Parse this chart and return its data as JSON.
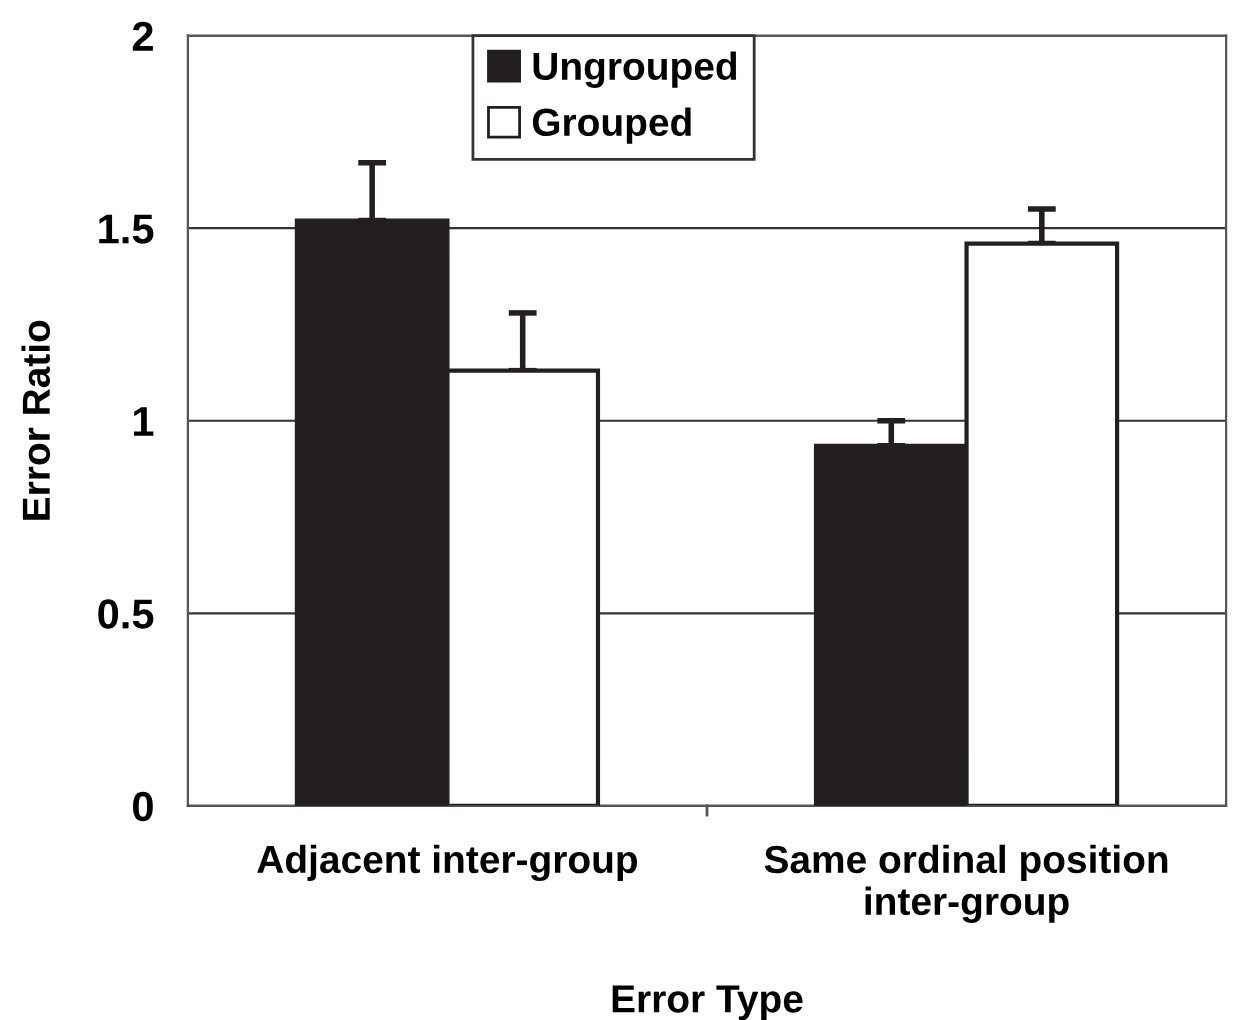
{
  "chart_data": {
    "type": "bar",
    "xlabel": "Error Type",
    "ylabel": "Error Ratio",
    "categories": [
      "Adjacent inter-group",
      "Same ordinal position\ninter-group"
    ],
    "series": [
      {
        "name": "Ungrouped",
        "color": "#231f20",
        "values": [
          1.52,
          0.935
        ],
        "errors": [
          [
            1.52,
            1.67
          ],
          [
            0.935,
            1.0
          ]
        ]
      },
      {
        "name": "Grouped",
        "color": "#ffffff",
        "values": [
          1.13,
          1.46
        ],
        "errors": [
          [
            1.13,
            1.28
          ],
          [
            1.46,
            1.55
          ]
        ]
      }
    ],
    "ylim": [
      0,
      2
    ],
    "yticks": [
      0,
      0.5,
      1,
      1.5,
      2
    ],
    "grid": "y",
    "legend": "top"
  }
}
